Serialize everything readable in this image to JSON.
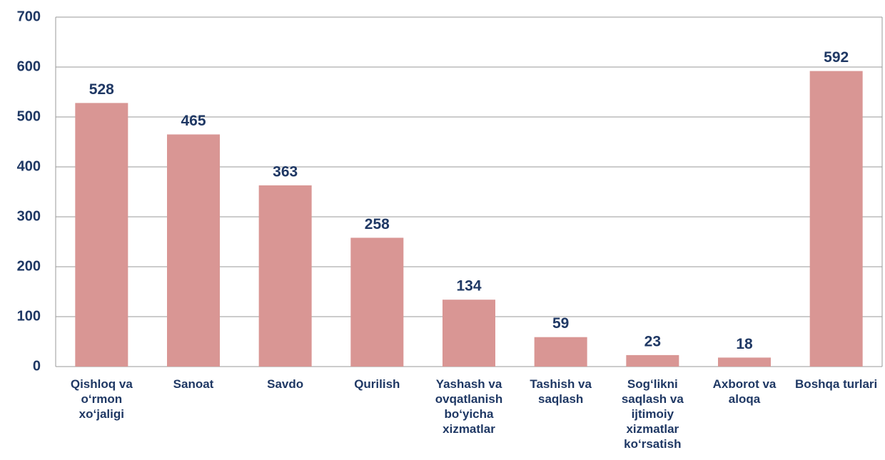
{
  "chart_data": {
    "type": "bar",
    "categories": [
      "Qishloq va o‘rmon xo‘jaligi",
      "Sanoat",
      "Savdo",
      "Qurilish",
      "Yashash va ovqatlanish bo‘yicha xizmatlar",
      "Tashish va saqlash",
      "Sog‘likni saqlash va ijtimoiy xizmatlar ko‘rsatish",
      "Axborot va aloqa",
      "Boshqa turlari"
    ],
    "values": [
      528,
      465,
      363,
      258,
      134,
      59,
      23,
      18,
      592
    ],
    "color": "#d99694",
    "ylim": [
      0,
      700
    ],
    "yticks": [
      0,
      100,
      200,
      300,
      400,
      500,
      600,
      700
    ],
    "grid": true
  }
}
